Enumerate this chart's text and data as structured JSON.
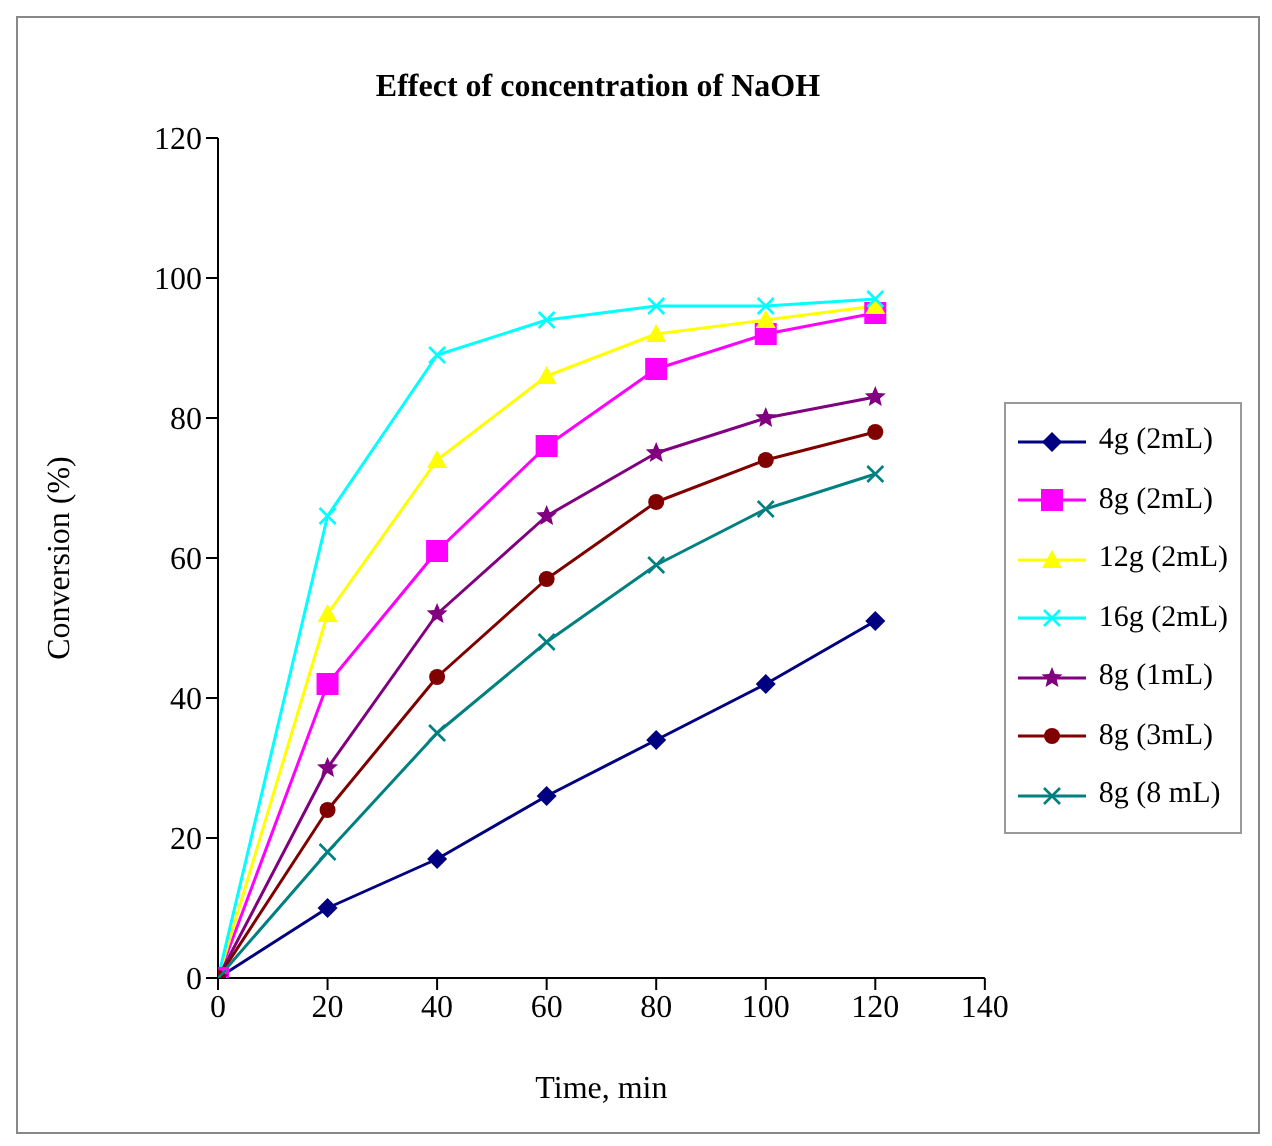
{
  "chart_data": {
    "type": "line",
    "title": "Effect of concentration of NaOH",
    "xlabel": "Time, min",
    "ylabel": "Conversion (%)",
    "x": [
      0,
      20,
      40,
      60,
      80,
      100,
      120
    ],
    "xlim": [
      0,
      140
    ],
    "xticks": [
      0,
      20,
      40,
      60,
      80,
      100,
      120,
      140
    ],
    "ylim": [
      0,
      120
    ],
    "yticks": [
      0,
      20,
      40,
      60,
      80,
      100,
      120
    ],
    "grid": false,
    "legend": "right",
    "line_style": "solid",
    "series": [
      {
        "name": "4g (2mL)",
        "color": "#000080",
        "marker": "diamond",
        "values": [
          0,
          10,
          17,
          26,
          34,
          42,
          51
        ]
      },
      {
        "name": "8g (2mL)",
        "color": "#ff00ff",
        "marker": "square",
        "values": [
          0,
          42,
          61,
          76,
          87,
          92,
          95
        ]
      },
      {
        "name": "12g (2mL)",
        "color": "#ffff00",
        "marker": "triangle",
        "values": [
          0,
          52,
          74,
          86,
          92,
          94,
          96
        ]
      },
      {
        "name": "16g (2mL)",
        "color": "#00ffff",
        "marker": "cross",
        "values": [
          0,
          66,
          89,
          94,
          96,
          96,
          97
        ]
      },
      {
        "name": "8g (1mL)",
        "color": "#800080",
        "marker": "star",
        "values": [
          0,
          30,
          52,
          66,
          75,
          80,
          83
        ]
      },
      {
        "name": "8g (3mL)",
        "color": "#800000",
        "marker": "circle",
        "values": [
          0,
          24,
          43,
          57,
          68,
          74,
          78
        ]
      },
      {
        "name": "8g (8 mL)",
        "color": "#008080",
        "marker": "cross",
        "values": [
          0,
          18,
          35,
          48,
          59,
          67,
          72
        ]
      }
    ]
  }
}
